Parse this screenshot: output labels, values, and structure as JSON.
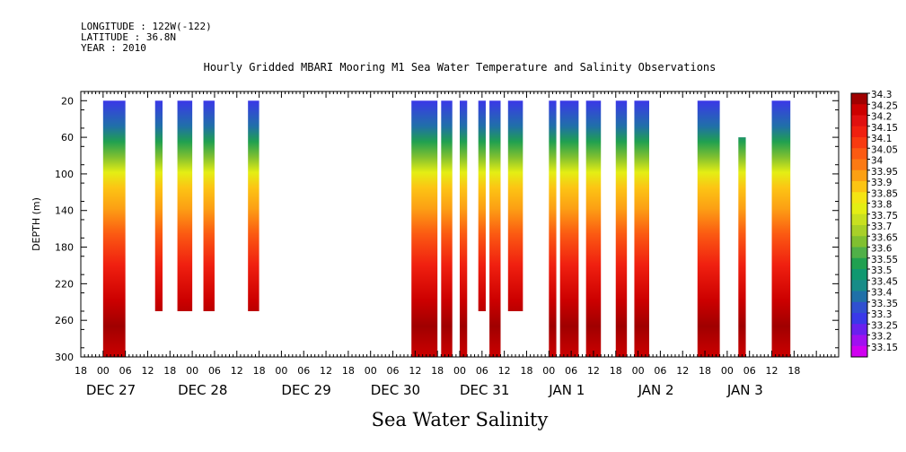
{
  "header": {
    "longitude": "LONGITUDE : 122W(-122)",
    "latitude": "LATITUDE : 36.8N",
    "year": "YEAR : 2010"
  },
  "chart_data": {
    "type": "heatmap",
    "title": "Hourly Gridded MBARI Mooring M1 Sea Water Temperature and Salinity Observations",
    "xlabel": "Sea Water Salinity",
    "ylabel": "DEPTH (m)",
    "y_ticks": [
      20,
      60,
      100,
      140,
      180,
      220,
      260,
      300
    ],
    "x_tick_labels": [
      "18",
      "00",
      "06",
      "12",
      "18",
      "00",
      "06",
      "12",
      "18",
      "00",
      "06",
      "12",
      "18",
      "00",
      "06",
      "12",
      "18",
      "00",
      "06",
      "12",
      "18",
      "00",
      "06",
      "12",
      "18",
      "00",
      "06",
      "12",
      "18",
      "00",
      "06",
      "12",
      "18"
    ],
    "day_labels": [
      "DEC 27",
      "DEC 28",
      "DEC 29",
      "DEC 30",
      "DEC 31",
      "JAN  1",
      "JAN  2",
      "JAN  3"
    ],
    "ylim": [
      300,
      20
    ],
    "colorbar_labels": [
      "34.3",
      "34.25",
      "34.2",
      "34.15",
      "34.1",
      "34.05",
      "34",
      "33.95",
      "33.9",
      "33.85",
      "33.8",
      "33.75",
      "33.7",
      "33.65",
      "33.6",
      "33.55",
      "33.5",
      "33.45",
      "33.4",
      "33.35",
      "33.3",
      "33.25",
      "33.2",
      "33.15"
    ],
    "colorbar_colors": [
      "#a00000",
      "#cc0000",
      "#e01010",
      "#f02010",
      "#f83a10",
      "#fb5a12",
      "#fc7a14",
      "#fca014",
      "#fcc414",
      "#f4e414",
      "#e4ee14",
      "#c8e020",
      "#a8d028",
      "#80c030",
      "#50b048",
      "#20a050",
      "#109870",
      "#188c88",
      "#2070a8",
      "#3050d0",
      "#3a38e8",
      "#6a20ee",
      "#a010f0",
      "#d000f0"
    ],
    "observation_blocks": [
      {
        "start": "DEC 27 00",
        "end": "DEC 27 05",
        "top": 20,
        "bottom": 300
      },
      {
        "start": "DEC 27 14",
        "end": "DEC 27 15",
        "top": 20,
        "bottom": 250
      },
      {
        "start": "DEC 27 20",
        "end": "DEC 27 23",
        "top": 20,
        "bottom": 250
      },
      {
        "start": "DEC 28 03",
        "end": "DEC 28 05",
        "top": 20,
        "bottom": 250
      },
      {
        "start": "DEC 28 15",
        "end": "DEC 28 17",
        "top": 20,
        "bottom": 250
      },
      {
        "start": "DEC 30 11",
        "end": "DEC 30 17",
        "top": 20,
        "bottom": 300
      },
      {
        "start": "DEC 30 19",
        "end": "DEC 30 21",
        "top": 20,
        "bottom": 300
      },
      {
        "start": "DEC 31 00",
        "end": "DEC 31 01",
        "top": 20,
        "bottom": 300
      },
      {
        "start": "DEC 31 05",
        "end": "DEC 31 06",
        "top": 20,
        "bottom": 250
      },
      {
        "start": "DEC 31 08",
        "end": "DEC 31 10",
        "top": 20,
        "bottom": 300
      },
      {
        "start": "DEC 31 13",
        "end": "DEC 31 16",
        "top": 20,
        "bottom": 250
      },
      {
        "start": "JAN 1 00",
        "end": "JAN 1 01",
        "top": 20,
        "bottom": 300
      },
      {
        "start": "JAN 1 03",
        "end": "JAN 1 07",
        "top": 20,
        "bottom": 300
      },
      {
        "start": "JAN 1 10",
        "end": "JAN 1 13",
        "top": 20,
        "bottom": 300
      },
      {
        "start": "JAN 1 18",
        "end": "JAN 1 20",
        "top": 20,
        "bottom": 300
      },
      {
        "start": "JAN 1 23",
        "end": "JAN 2 02",
        "top": 20,
        "bottom": 300
      },
      {
        "start": "JAN 2 16",
        "end": "JAN 2 21",
        "top": 20,
        "bottom": 300
      },
      {
        "start": "JAN 3 03",
        "end": "JAN 3 04",
        "top": 60,
        "bottom": 300
      },
      {
        "start": "JAN 3 12",
        "end": "JAN 3 16",
        "top": 20,
        "bottom": 300
      }
    ]
  }
}
